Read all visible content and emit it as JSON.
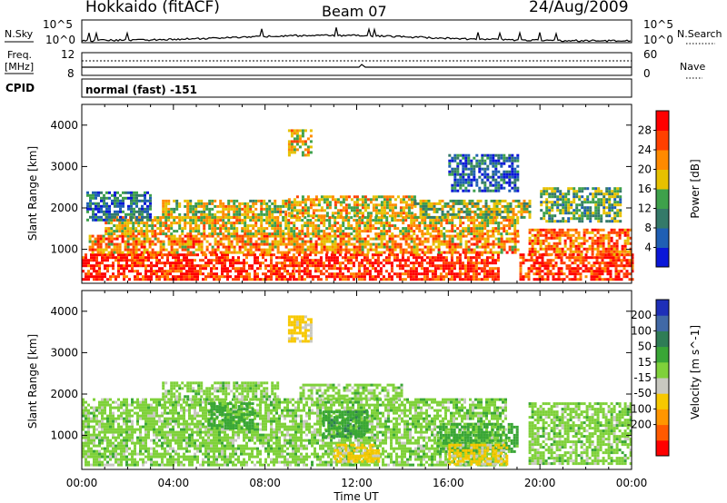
{
  "header": {
    "station": "Hokkaido (fitACF)",
    "beam": "Beam 07",
    "date": "24/Aug/2009"
  },
  "nsky_panel": {
    "label": "N.Sky",
    "left_ticks": [
      "10^5",
      "10^0"
    ],
    "right_ticks": [
      "10^5",
      "10^0"
    ],
    "right_label": "N.Search"
  },
  "freq_panel": {
    "label_line1": "Freq.",
    "label_line2": "[MHz]",
    "left_ticks": [
      "12",
      "8"
    ],
    "right_ticks": [
      "60",
      "0"
    ],
    "right_label": "Nave"
  },
  "cpid_panel": {
    "label": "CPID",
    "mode_text": "normal (fast) -151"
  },
  "axes": {
    "ylabel": "Slant Range [km]",
    "xlabel": "Time UT",
    "y_ticks": [
      "1000",
      "2000",
      "3000",
      "4000"
    ],
    "x_ticks": [
      "00:00",
      "04:00",
      "08:00",
      "12:00",
      "16:00",
      "20:00",
      "00:00"
    ]
  },
  "colorbars": {
    "power": {
      "label": "Power [dB]",
      "ticks": [
        "4",
        "8",
        "12",
        "16",
        "20",
        "24",
        "28"
      ],
      "colors": [
        "#0a17d8",
        "#1f5fb4",
        "#347a69",
        "#3ea14b",
        "#e7c100",
        "#ff8a00",
        "#ff4000",
        "#ff0000"
      ]
    },
    "velocity": {
      "label": "Velocity [m s^-1]",
      "ticks": [
        "200",
        "100",
        "50",
        "15",
        "-15",
        "-50",
        "-100",
        "-200"
      ],
      "colors": [
        "#1e2fb8",
        "#4169a6",
        "#2f7d56",
        "#39a636",
        "#7fd13a",
        "#c8c8c0",
        "#f7c800",
        "#ff9600",
        "#ff5a00",
        "#ff0000"
      ]
    }
  },
  "chart_data": {
    "type": "heatmap",
    "x_range": [
      "00:00",
      "00:00"
    ],
    "x_unit": "UT",
    "ylim": [
      180,
      4500
    ],
    "panels": [
      {
        "name": "Power",
        "unit": "dB",
        "bands": [
          {
            "t0": 0.0,
            "t1": 9.2,
            "r0": 300,
            "r1": 900,
            "value": 28
          },
          {
            "t0": 9.2,
            "t1": 18.2,
            "r0": 300,
            "r1": 900,
            "value": 28
          },
          {
            "t0": 19.1,
            "t1": 24.0,
            "r0": 300,
            "r1": 900,
            "value": 28
          },
          {
            "t0": 0.3,
            "t1": 19.0,
            "r0": 900,
            "r1": 1350,
            "value": 22
          },
          {
            "t0": 19.5,
            "t1": 24.0,
            "r0": 900,
            "r1": 1500,
            "value": 24
          },
          {
            "t0": 1.0,
            "t1": 19.0,
            "r0": 1350,
            "r1": 1800,
            "value": 19
          },
          {
            "t0": 0.2,
            "t1": 3.0,
            "r0": 1700,
            "r1": 2400,
            "value": 9
          },
          {
            "t0": 3.5,
            "t1": 9.0,
            "r0": 1800,
            "r1": 2200,
            "value": 18
          },
          {
            "t0": 9.0,
            "t1": 14.5,
            "r0": 1800,
            "r1": 2300,
            "value": 19
          },
          {
            "t0": 14.5,
            "t1": 19.5,
            "r0": 1800,
            "r1": 2200,
            "value": 15
          },
          {
            "t0": 20.0,
            "t1": 23.5,
            "r0": 1700,
            "r1": 2500,
            "value": 13
          },
          {
            "t0": 16.0,
            "t1": 19.0,
            "r0": 2400,
            "r1": 3300,
            "value": 7
          },
          {
            "t0": 9.0,
            "t1": 10.0,
            "r0": 3300,
            "r1": 3900,
            "value": 20
          }
        ]
      },
      {
        "name": "Velocity",
        "unit": "m s^-1",
        "bands": [
          {
            "t0": 0.0,
            "t1": 18.5,
            "r0": 300,
            "r1": 1900,
            "value": 0
          },
          {
            "t0": 19.5,
            "t1": 24.0,
            "r0": 300,
            "r1": 1800,
            "value": 0
          },
          {
            "t0": 3.5,
            "t1": 8.5,
            "r0": 1900,
            "r1": 2300,
            "value": 0
          },
          {
            "t0": 9.5,
            "t1": 14.0,
            "r0": 1900,
            "r1": 2250,
            "value": 0
          },
          {
            "t0": 15.5,
            "t1": 19.0,
            "r0": 600,
            "r1": 1300,
            "value": 30
          },
          {
            "t0": 10.5,
            "t1": 12.5,
            "r0": 1000,
            "r1": 1600,
            "value": 35
          },
          {
            "t0": 5.5,
            "t1": 7.5,
            "r0": 1200,
            "r1": 1800,
            "value": 30
          },
          {
            "t0": 11.0,
            "t1": 13.0,
            "r0": 400,
            "r1": 800,
            "value": -60
          },
          {
            "t0": 16.0,
            "t1": 18.5,
            "r0": 300,
            "r1": 800,
            "value": -60
          },
          {
            "t0": 9.0,
            "t1": 10.0,
            "r0": 3300,
            "r1": 3900,
            "value": -60
          }
        ]
      }
    ]
  }
}
